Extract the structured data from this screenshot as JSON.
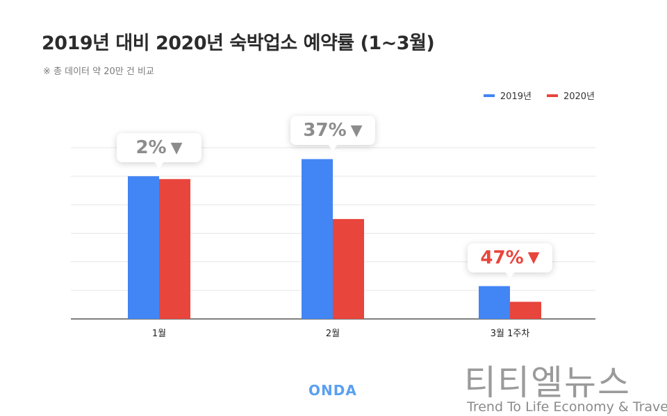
{
  "title": "2019년 대비 2020년 숙박업소 예약률 (1~3월)",
  "subtitle": "※ 총 데이터 약 20만 건 비교",
  "colors": {
    "series_2019": "#4285F4",
    "series_2020": "#E8453C",
    "callout_gray": "#8c8c8c",
    "callout_red": "#E8453C"
  },
  "chart_data": {
    "type": "bar",
    "categories": [
      "1월",
      "2월",
      "3월 1주차"
    ],
    "series": [
      {
        "name": "2019년",
        "values": [
          100,
          112,
          23
        ]
      },
      {
        "name": "2020년",
        "values": [
          98,
          70,
          12
        ]
      }
    ],
    "ylim": [
      0,
      120
    ],
    "grid": true,
    "legend": "top-right",
    "annotations": [
      {
        "category": "1월",
        "text": "2%",
        "arrow": "▼",
        "color": "gray"
      },
      {
        "category": "2월",
        "text": "37%",
        "arrow": "▼",
        "color": "gray"
      },
      {
        "category": "3월 1주차",
        "text": "47%",
        "arrow": "▼",
        "color": "red"
      }
    ]
  },
  "brand": "ONDA",
  "watermark": {
    "korean": "티티엘뉴스",
    "english": "Trend To Life Economy & Travel"
  }
}
